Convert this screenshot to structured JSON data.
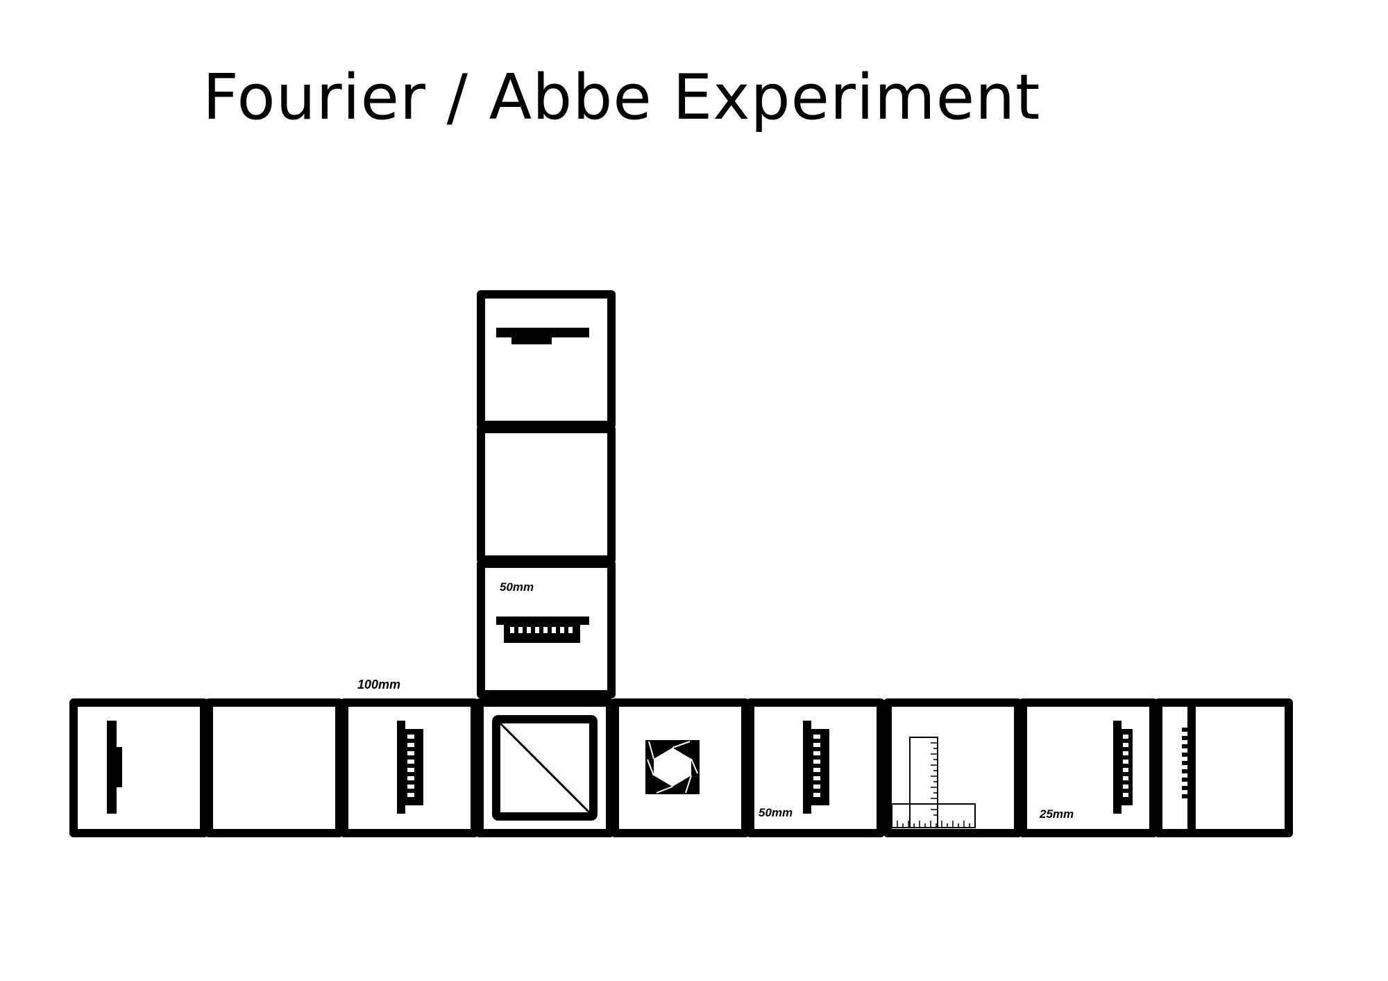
{
  "title": "Fourier / Abbe Experiment",
  "labels": {
    "lens_100": "100mm",
    "lens_50_vertical": "50mm",
    "lens_50_row": "50mm",
    "lens_25": "25mm"
  },
  "components": {
    "column": [
      "mirror",
      "empty",
      "lens"
    ],
    "row": [
      "light-source",
      "empty",
      "lens",
      "beam-splitter",
      "iris-aperture",
      "lens",
      "ruler",
      "lens",
      "screen"
    ]
  }
}
